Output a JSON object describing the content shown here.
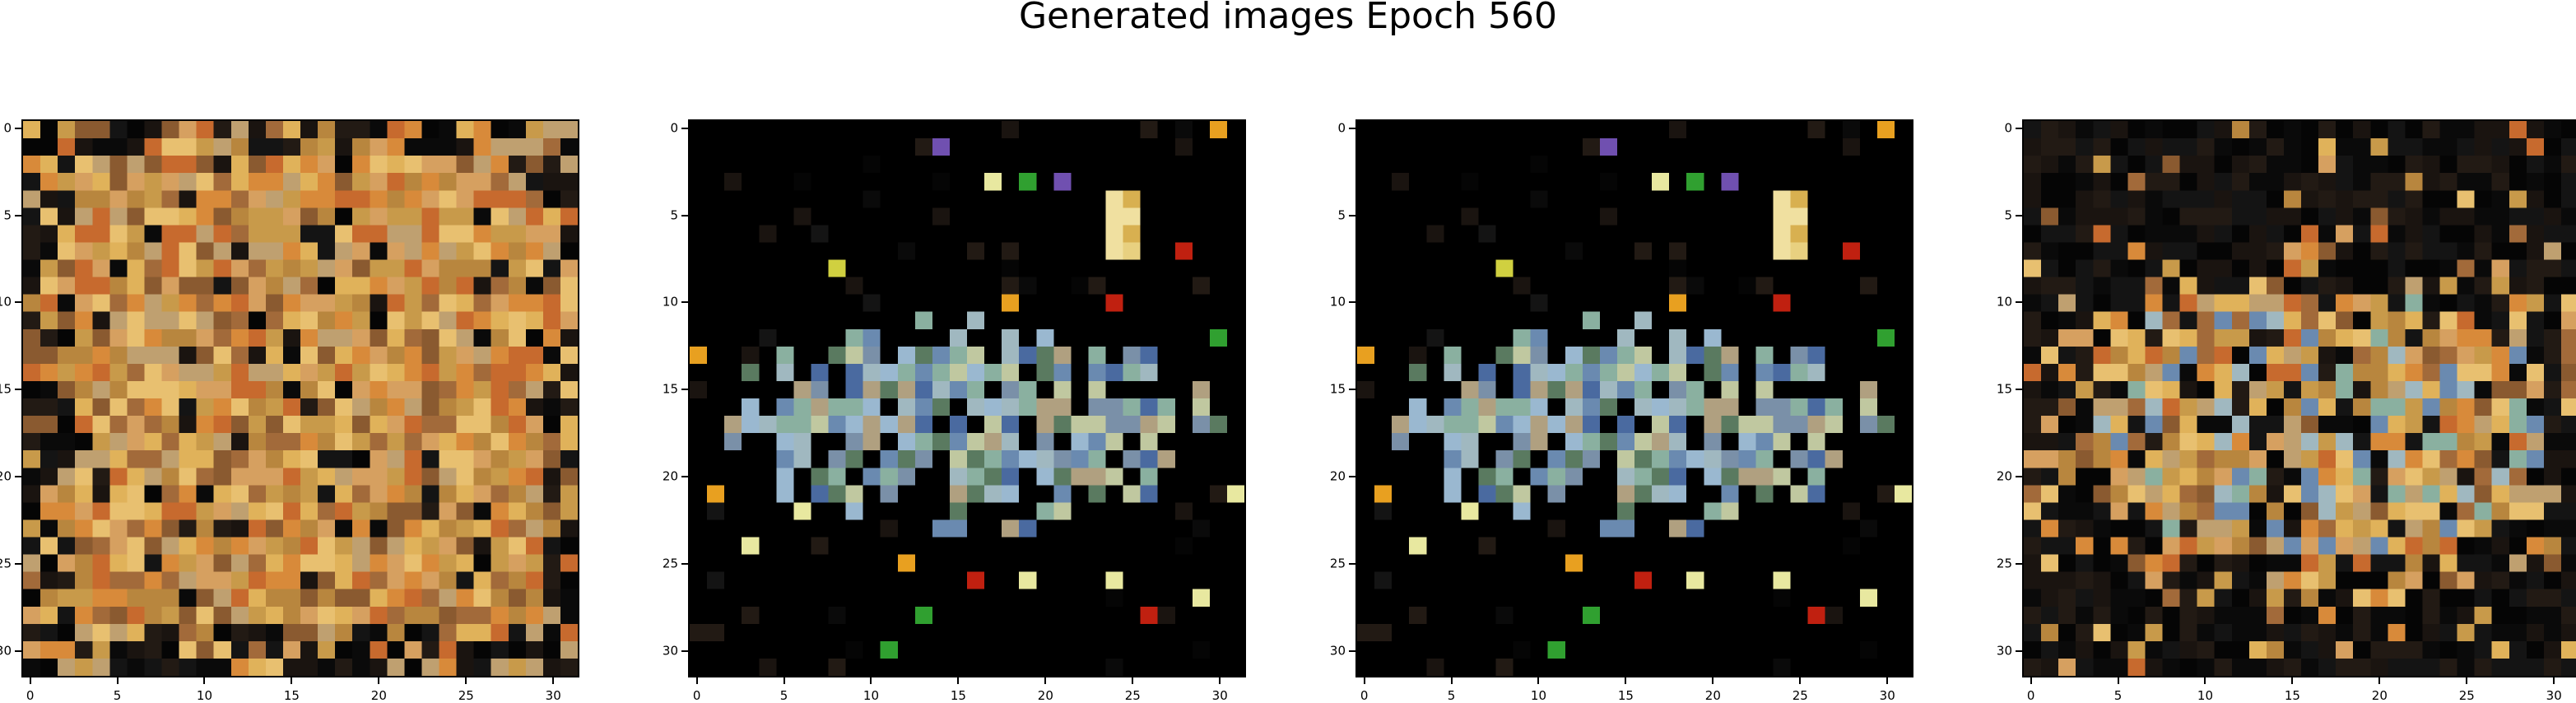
{
  "figure": {
    "title": "Generated images Epoch 560"
  },
  "panels": [
    {
      "id": "panel-1",
      "style": "warm-full"
    },
    {
      "id": "panel-2",
      "style": "sparse-cool"
    },
    {
      "id": "panel-3",
      "style": "sparse-cool"
    },
    {
      "id": "panel-4",
      "style": "warm-sparse"
    }
  ],
  "axes": {
    "x_ticks": [
      "0",
      "5",
      "10",
      "15",
      "20",
      "25",
      "30"
    ],
    "y_ticks": [
      "0",
      "5",
      "10",
      "15",
      "20",
      "25",
      "30"
    ],
    "tick_values": [
      0,
      5,
      10,
      15,
      20,
      25,
      30
    ],
    "pixel_grid": 32
  },
  "colors": {
    "background": "#ffffff",
    "frame": "#000000",
    "warm": [
      "#c89a4a",
      "#e0b25a",
      "#d88a3a",
      "#b8863e",
      "#a26a3a",
      "#e8c070",
      "#c76a2e",
      "#8a5a30",
      "#bfa070",
      "#d6a060"
    ],
    "dark": [
      "#050505",
      "#0a0a0a",
      "#141414",
      "#1a1410",
      "#221a14"
    ],
    "cool": [
      "#6a8ab0",
      "#8ab0a0",
      "#a0b8c0",
      "#4a6aa0",
      "#c0c8a0",
      "#7a90a8",
      "#b0a080",
      "#9ab8d0",
      "#5a7a60"
    ],
    "accent": [
      "#e8a020",
      "#c02010",
      "#30a030",
      "#e8e8a0",
      "#7050b0",
      "#d0d040"
    ]
  }
}
